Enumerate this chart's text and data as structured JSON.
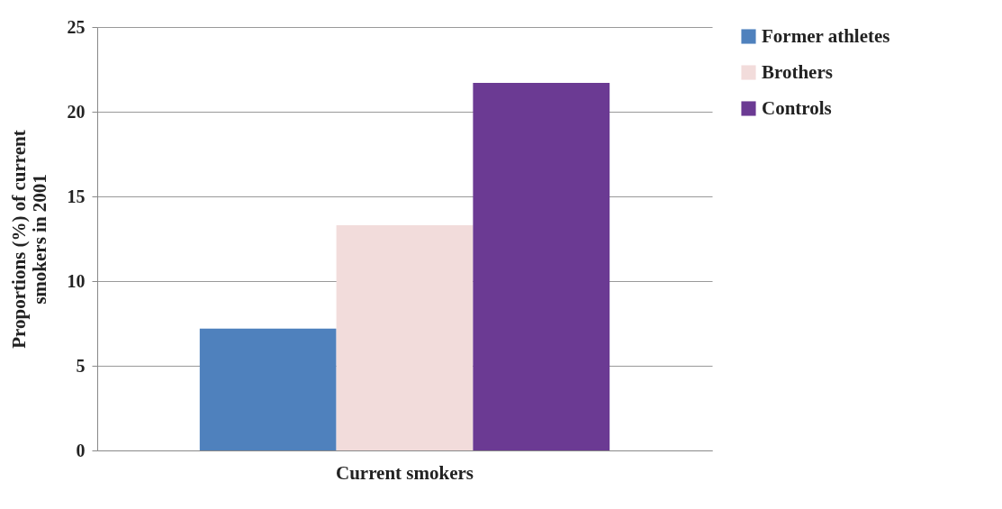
{
  "chart_data": {
    "type": "bar",
    "ylabel": "Proportions (%) of current smokers in 2001",
    "categories": [
      "Current smokers"
    ],
    "series": [
      {
        "name": "Former athletes",
        "color": "#4f81bd",
        "values": [
          7.2
        ]
      },
      {
        "name": "Brothers",
        "color": "#f2dcdb",
        "values": [
          13.3
        ]
      },
      {
        "name": "Controls",
        "color": "#6b3a93",
        "values": [
          21.7
        ]
      }
    ],
    "ylim": [
      0,
      25
    ],
    "yticks": [
      0,
      5,
      10,
      15,
      20,
      25
    ],
    "grid": "y",
    "legend": "right"
  }
}
